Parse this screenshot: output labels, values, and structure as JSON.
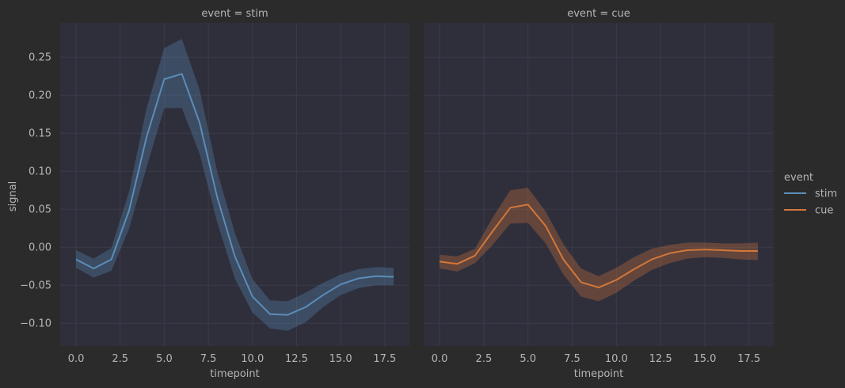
{
  "chart_data": {
    "type": "line",
    "xlabel": "timepoint",
    "ylabel": "signal",
    "xlim": [
      -0.9,
      18.9
    ],
    "ylim": [
      -0.13,
      0.295
    ],
    "xticks": [
      0.0,
      2.5,
      5.0,
      7.5,
      10.0,
      12.5,
      15.0,
      17.5
    ],
    "xtick_labels": [
      "0.0",
      "2.5",
      "5.0",
      "7.5",
      "10.0",
      "12.5",
      "15.0",
      "17.5"
    ],
    "yticks": [
      -0.1,
      -0.05,
      0.0,
      0.05,
      0.1,
      0.15,
      0.2,
      0.25
    ],
    "ytick_labels": [
      "−0.10",
      "−0.05",
      "0.00",
      "0.05",
      "0.10",
      "0.15",
      "0.20",
      "0.25"
    ],
    "grid": true,
    "legend": {
      "title": "event",
      "position": "right",
      "entries": [
        {
          "label": "stim",
          "color": "#5b8db8"
        },
        {
          "label": "cue",
          "color": "#d2773a"
        }
      ]
    },
    "panels": [
      {
        "title": "event = stim",
        "series": {
          "name": "stim",
          "color": "#5b8db8",
          "x": [
            0,
            1,
            2,
            3,
            4,
            5,
            6,
            7,
            8,
            9,
            10,
            11,
            12,
            13,
            14,
            15,
            16,
            17,
            18
          ],
          "y": [
            -0.016,
            -0.028,
            -0.016,
            0.048,
            0.145,
            0.221,
            0.228,
            0.164,
            0.066,
            -0.012,
            -0.065,
            -0.088,
            -0.089,
            -0.079,
            -0.063,
            -0.049,
            -0.041,
            -0.038,
            -0.039
          ],
          "lower": [
            -0.027,
            -0.04,
            -0.031,
            0.024,
            0.105,
            0.183,
            0.183,
            0.123,
            0.033,
            -0.041,
            -0.086,
            -0.107,
            -0.11,
            -0.099,
            -0.079,
            -0.063,
            -0.054,
            -0.05,
            -0.05
          ],
          "upper": [
            -0.004,
            -0.015,
            -0.001,
            0.073,
            0.183,
            0.262,
            0.274,
            0.207,
            0.1,
            0.019,
            -0.042,
            -0.07,
            -0.071,
            -0.06,
            -0.047,
            -0.036,
            -0.029,
            -0.026,
            -0.027
          ]
        }
      },
      {
        "title": "event = cue",
        "series": {
          "name": "cue",
          "color": "#d2773a",
          "x": [
            0,
            1,
            2,
            3,
            4,
            5,
            6,
            7,
            8,
            9,
            10,
            11,
            12,
            13,
            14,
            15,
            16,
            17,
            18
          ],
          "y": [
            -0.019,
            -0.022,
            -0.011,
            0.021,
            0.052,
            0.056,
            0.028,
            -0.016,
            -0.046,
            -0.053,
            -0.043,
            -0.029,
            -0.016,
            -0.008,
            -0.004,
            -0.003,
            -0.004,
            -0.005,
            -0.005
          ],
          "lower": [
            -0.028,
            -0.032,
            -0.021,
            0.003,
            0.031,
            0.032,
            0.005,
            -0.036,
            -0.065,
            -0.071,
            -0.06,
            -0.044,
            -0.03,
            -0.021,
            -0.015,
            -0.013,
            -0.014,
            -0.016,
            -0.017
          ],
          "upper": [
            -0.01,
            -0.012,
            -0.002,
            0.039,
            0.075,
            0.078,
            0.047,
            0.004,
            -0.028,
            -0.038,
            -0.027,
            -0.013,
            -0.002,
            0.003,
            0.006,
            0.006,
            0.005,
            0.005,
            0.006
          ]
        }
      }
    ]
  }
}
